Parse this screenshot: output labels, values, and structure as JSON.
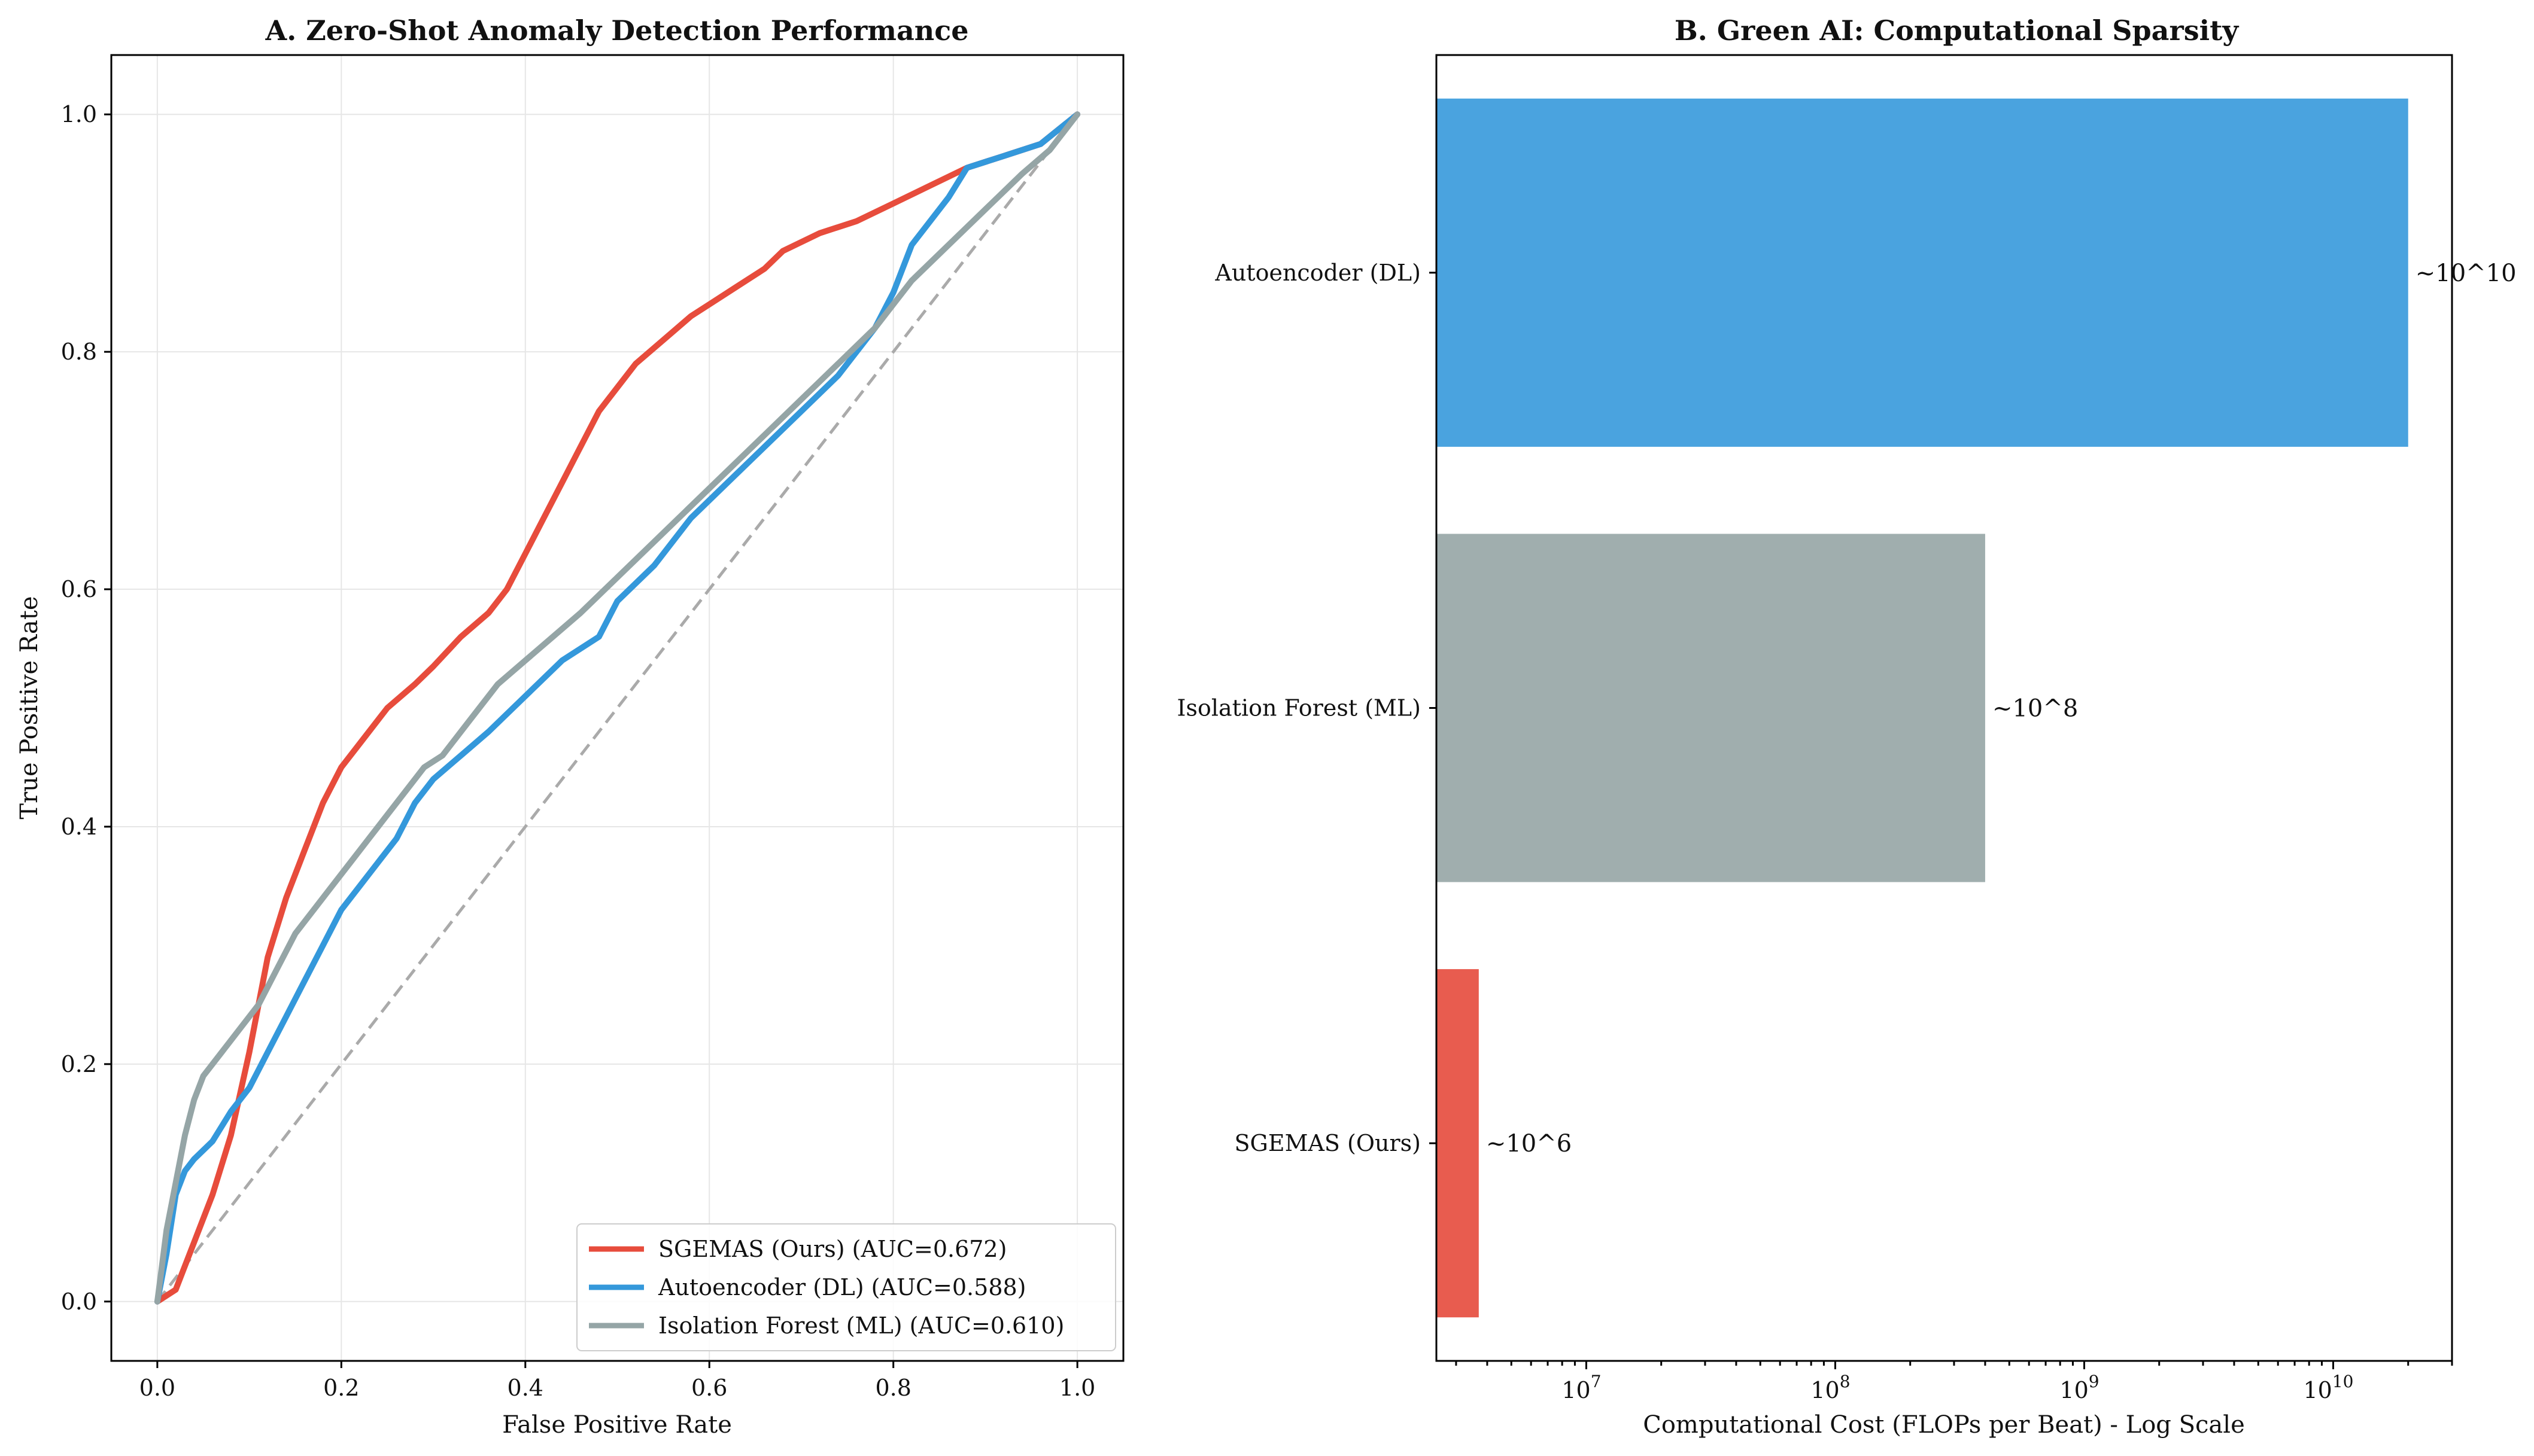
{
  "chart_data": [
    {
      "type": "line",
      "title": "A. Zero-Shot Anomaly Detection Performance",
      "xlabel": "False Positive Rate",
      "ylabel": "True Positive Rate",
      "xlim": [
        -0.05,
        1.05
      ],
      "ylim": [
        -0.05,
        1.05
      ],
      "grid": true,
      "legend_position": "lower-right",
      "xticks": [
        "0.0",
        "0.2",
        "0.4",
        "0.6",
        "0.8",
        "1.0"
      ],
      "yticks": [
        "0.0",
        "0.2",
        "0.4",
        "0.6",
        "0.8",
        "1.0"
      ],
      "reference_line": {
        "x": [
          0,
          1
        ],
        "y": [
          0,
          1
        ],
        "color": "#aaaaaa",
        "style": "dashed"
      },
      "series": [
        {
          "name": "SGEMAS (Ours) (AUC=0.672)",
          "color": "#e74c3c",
          "x": [
            0.0,
            0.02,
            0.04,
            0.06,
            0.08,
            0.1,
            0.12,
            0.14,
            0.16,
            0.18,
            0.2,
            0.22,
            0.25,
            0.28,
            0.3,
            0.33,
            0.36,
            0.38,
            0.4,
            0.42,
            0.44,
            0.46,
            0.48,
            0.5,
            0.52,
            0.55,
            0.58,
            0.6,
            0.63,
            0.66,
            0.68,
            0.72,
            0.76,
            0.8,
            0.84,
            0.88,
            0.92,
            0.96,
            1.0
          ],
          "y": [
            0.0,
            0.01,
            0.05,
            0.09,
            0.14,
            0.21,
            0.29,
            0.34,
            0.38,
            0.42,
            0.45,
            0.47,
            0.5,
            0.52,
            0.535,
            0.56,
            0.58,
            0.6,
            0.63,
            0.66,
            0.69,
            0.72,
            0.75,
            0.77,
            0.79,
            0.81,
            0.83,
            0.84,
            0.855,
            0.87,
            0.885,
            0.9,
            0.91,
            0.925,
            0.94,
            0.955,
            0.965,
            0.975,
            1.0
          ]
        },
        {
          "name": "Autoencoder (DL) (AUC=0.588)",
          "color": "#3498db",
          "x": [
            0.0,
            0.01,
            0.02,
            0.03,
            0.04,
            0.06,
            0.08,
            0.1,
            0.12,
            0.14,
            0.16,
            0.18,
            0.2,
            0.22,
            0.24,
            0.26,
            0.28,
            0.3,
            0.33,
            0.36,
            0.4,
            0.44,
            0.48,
            0.5,
            0.54,
            0.58,
            0.62,
            0.66,
            0.7,
            0.74,
            0.78,
            0.8,
            0.82,
            0.86,
            0.88,
            0.92,
            0.96,
            1.0
          ],
          "y": [
            0.0,
            0.04,
            0.09,
            0.11,
            0.12,
            0.135,
            0.16,
            0.18,
            0.21,
            0.24,
            0.27,
            0.3,
            0.33,
            0.35,
            0.37,
            0.39,
            0.42,
            0.44,
            0.46,
            0.48,
            0.51,
            0.54,
            0.56,
            0.59,
            0.62,
            0.66,
            0.69,
            0.72,
            0.75,
            0.78,
            0.82,
            0.85,
            0.89,
            0.93,
            0.955,
            0.965,
            0.975,
            1.0
          ]
        },
        {
          "name": "Isolation Forest (ML) (AUC=0.610)",
          "color": "#95a5a6",
          "x": [
            0.0,
            0.005,
            0.01,
            0.02,
            0.03,
            0.04,
            0.05,
            0.07,
            0.09,
            0.11,
            0.13,
            0.15,
            0.17,
            0.19,
            0.21,
            0.23,
            0.25,
            0.27,
            0.29,
            0.31,
            0.34,
            0.37,
            0.4,
            0.43,
            0.46,
            0.5,
            0.54,
            0.58,
            0.62,
            0.66,
            0.7,
            0.74,
            0.78,
            0.82,
            0.86,
            0.9,
            0.94,
            0.97,
            1.0
          ],
          "y": [
            0.0,
            0.03,
            0.06,
            0.1,
            0.14,
            0.17,
            0.19,
            0.21,
            0.23,
            0.25,
            0.28,
            0.31,
            0.33,
            0.35,
            0.37,
            0.39,
            0.41,
            0.43,
            0.45,
            0.46,
            0.49,
            0.52,
            0.54,
            0.56,
            0.58,
            0.61,
            0.64,
            0.67,
            0.7,
            0.73,
            0.76,
            0.79,
            0.82,
            0.86,
            0.89,
            0.92,
            0.95,
            0.97,
            1.0
          ]
        }
      ]
    },
    {
      "type": "bar",
      "orientation": "horizontal",
      "title": "B. Green AI: Computational Sparsity",
      "xlabel": "Computational Cost (FLOPs per Beat) - Log Scale",
      "xscale": "log",
      "xlim": [
        2500000,
        30000000000
      ],
      "xticks": [
        {
          "value": 10000000,
          "base": "10",
          "exp": "7"
        },
        {
          "value": 100000000,
          "base": "10",
          "exp": "8"
        },
        {
          "value": 1000000000,
          "base": "10",
          "exp": "9"
        },
        {
          "value": 10000000000,
          "base": "10",
          "exp": "10"
        }
      ],
      "categories": [
        "Autoencoder (DL)",
        "Isolation Forest (ML)",
        "SGEMAS (Ours)"
      ],
      "values": [
        20000000000,
        400000000,
        3700000
      ],
      "colors": [
        "#4aa3df",
        "#a0aeae",
        "#e85c4f"
      ],
      "annotations": [
        "~10^10",
        "~10^8",
        "~10^6"
      ]
    }
  ]
}
